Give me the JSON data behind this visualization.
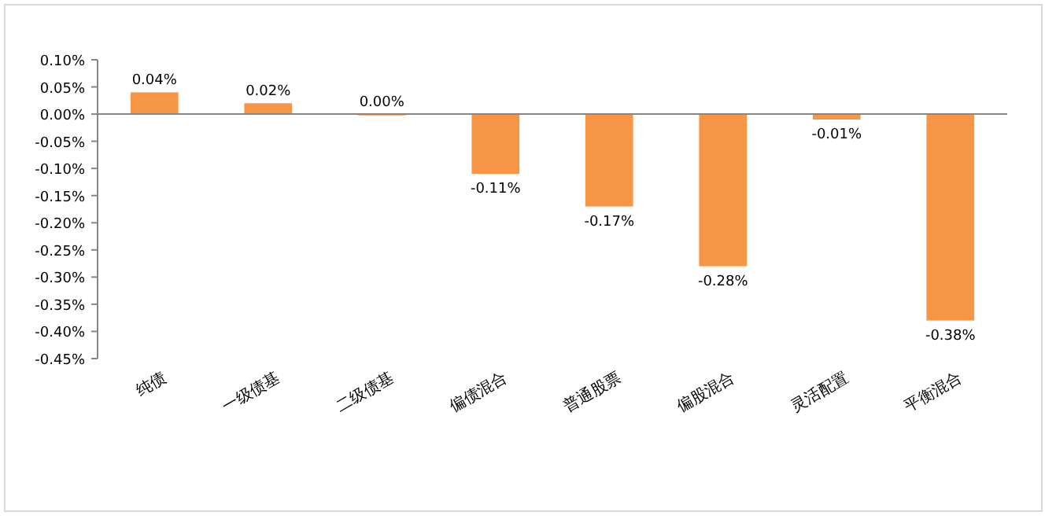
{
  "chart_data": {
    "type": "bar",
    "categories": [
      "纯债",
      "一级债基",
      "二级债基",
      "偏债混合",
      "普通股票",
      "偏股混合",
      "灵活配置",
      "平衡混合"
    ],
    "values": [
      0.04,
      0.02,
      0.0,
      -0.11,
      -0.17,
      -0.28,
      -0.01,
      -0.38
    ],
    "value_labels": [
      "0.04%",
      "0.02%",
      "0.00%",
      "-0.11%",
      "-0.17%",
      "-0.28%",
      "-0.01%",
      "-0.38%"
    ],
    "color": "#f79646",
    "ylim": [
      -0.45,
      0.1
    ],
    "yticks": [
      {
        "value": 0.1,
        "label": "0.10%"
      },
      {
        "value": 0.05,
        "label": "0.05%"
      },
      {
        "value": 0,
        "label": "0.00%"
      },
      {
        "value": -0.05,
        "label": "-0.05%"
      },
      {
        "value": -0.1,
        "label": "-0.10%"
      },
      {
        "value": -0.15,
        "label": "-0.15%"
      },
      {
        "value": -0.2,
        "label": "-0.20%"
      },
      {
        "value": -0.25,
        "label": "-0.25%"
      },
      {
        "value": -0.3,
        "label": "-0.30%"
      },
      {
        "value": -0.35,
        "label": "-0.35%"
      },
      {
        "value": -0.4,
        "label": "-0.40%"
      },
      {
        "value": -0.45,
        "label": "-0.45%"
      }
    ]
  }
}
